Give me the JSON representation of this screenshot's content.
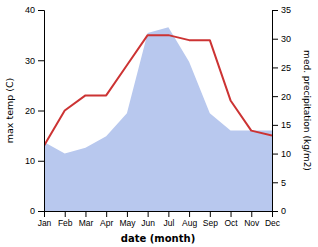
{
  "chart_data": {
    "type": "line",
    "xlabel": "date (month)",
    "ylabel": "max temp (C)",
    "y2label": "med. precipitation (kg/m2)",
    "categories": [
      "Jan",
      "Feb",
      "Mar",
      "Apr",
      "May",
      "Jun",
      "Jul",
      "Aug",
      "Sep",
      "Oct",
      "Nov",
      "Dec"
    ],
    "series": [
      {
        "type": "line",
        "color": "#cc3333",
        "values": [
          13,
          20,
          23,
          23,
          29,
          35,
          35,
          34,
          34,
          22,
          16,
          15
        ]
      },
      {
        "type": "area",
        "axis": "y2",
        "color": "#b8c8ee",
        "values": [
          12,
          10,
          11,
          13,
          17,
          31,
          32,
          26,
          17,
          14,
          14,
          14
        ]
      }
    ],
    "ylim": [
      0,
      40
    ],
    "yticks": [
      0,
      10,
      20,
      30,
      40
    ],
    "y2lim": [
      0,
      35
    ],
    "y2ticks": [
      0,
      5,
      10,
      15,
      20,
      25,
      30,
      35
    ]
  }
}
